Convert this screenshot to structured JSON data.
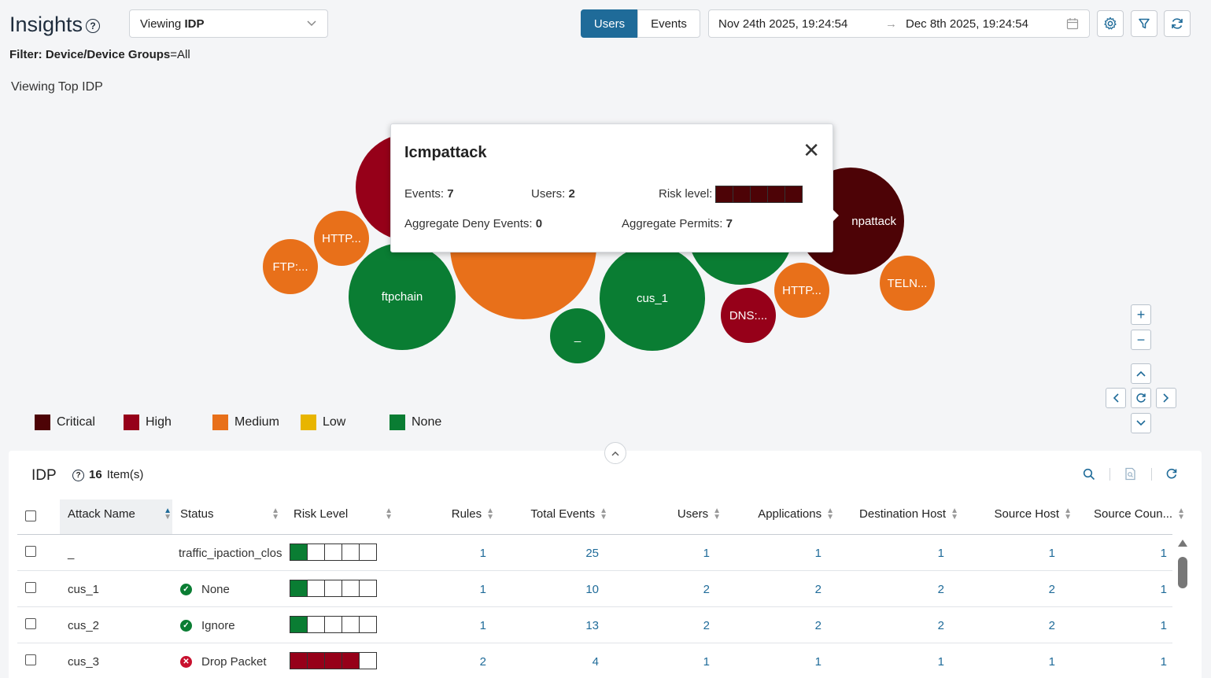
{
  "header": {
    "title": "Insights",
    "viewing_prefix": "Viewing",
    "viewing_value": "IDP",
    "filter_label": "Filter: Device/Device Groups",
    "filter_value": "=All",
    "subtitle": "Viewing Top IDP"
  },
  "toolbar": {
    "users_label": "Users",
    "events_label": "Events",
    "date_from": "Nov 24th 2025, 19:24:54",
    "date_to": "Dec 8th 2025, 19:24:54"
  },
  "colors": {
    "critical": "#4d0306",
    "high": "#960019",
    "medium": "#e8701a",
    "low": "#e8b500",
    "none": "#0a7d33",
    "accent": "#1f6b99"
  },
  "bubbles": [
    {
      "label": "",
      "level": "high"
    },
    {
      "label": "HTTP...",
      "level": "medium"
    },
    {
      "label": "FTP:...",
      "level": "medium"
    },
    {
      "label": "ftpchain",
      "level": "none"
    },
    {
      "label": "",
      "level": "medium"
    },
    {
      "label": "_",
      "level": "none"
    },
    {
      "label": "cus_1",
      "level": "none"
    },
    {
      "label": "",
      "level": "none"
    },
    {
      "label": "DNS:...",
      "level": "high"
    },
    {
      "label": "HTTP...",
      "level": "medium"
    },
    {
      "label": "npattack",
      "level": "critical"
    },
    {
      "label": "TELN...",
      "level": "medium"
    }
  ],
  "tooltip": {
    "title": "Icmpattack",
    "events_label": "Events:",
    "events_value": "7",
    "users_label": "Users:",
    "users_value": "2",
    "risk_label": "Risk level:",
    "risk_level": 5,
    "deny_label": "Aggregate Deny Events:",
    "deny_value": "0",
    "permits_label": "Aggregate Permits:",
    "permits_value": "7"
  },
  "legend": [
    {
      "label": "Critical",
      "color": "#4d0306"
    },
    {
      "label": "High",
      "color": "#960019"
    },
    {
      "label": "Medium",
      "color": "#e8701a"
    },
    {
      "label": "Low",
      "color": "#e8b500"
    },
    {
      "label": "None",
      "color": "#0a7d33"
    }
  ],
  "table": {
    "title": "IDP",
    "count": "16",
    "count_suffix": "Item(s)",
    "columns": [
      "Attack Name",
      "Status",
      "Risk Level",
      "Rules",
      "Total Events",
      "Users",
      "Applications",
      "Destination Host",
      "Source Host",
      "Source Coun..."
    ],
    "rows": [
      {
        "name": "_",
        "status": "traffic_ipaction_clos",
        "status_icon": "",
        "risk": 1,
        "risk_color": "#0a7d33",
        "rules": "1",
        "events": "25",
        "users": "1",
        "apps": "1",
        "dest": "1",
        "src": "1",
        "country": "1"
      },
      {
        "name": "cus_1",
        "status": "None",
        "status_icon": "check",
        "risk": 1,
        "risk_color": "#0a7d33",
        "rules": "1",
        "events": "10",
        "users": "2",
        "apps": "2",
        "dest": "2",
        "src": "2",
        "country": "1"
      },
      {
        "name": "cus_2",
        "status": "Ignore",
        "status_icon": "check",
        "risk": 1,
        "risk_color": "#0a7d33",
        "rules": "1",
        "events": "13",
        "users": "2",
        "apps": "2",
        "dest": "2",
        "src": "2",
        "country": "1"
      },
      {
        "name": "cus_3",
        "status": "Drop Packet",
        "status_icon": "cross",
        "risk": 4,
        "risk_color": "#960019",
        "rules": "2",
        "events": "4",
        "users": "1",
        "apps": "1",
        "dest": "1",
        "src": "1",
        "country": "1"
      }
    ]
  }
}
